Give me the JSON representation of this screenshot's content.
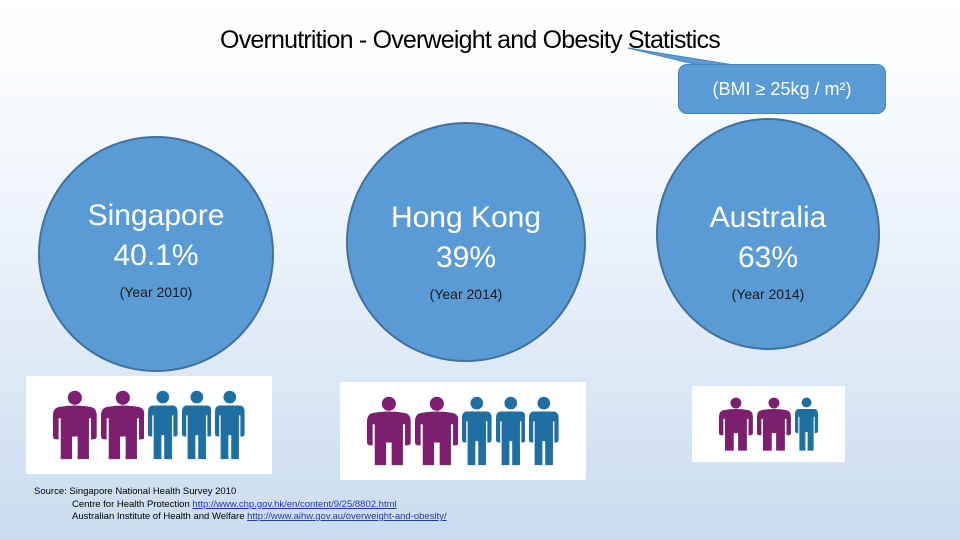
{
  "title": "Overnutrition - Overweight and Obesity Statistics",
  "callout": "(BMI ≥ 25kg / m²)",
  "colors": {
    "circle": "#5b9bd5",
    "overweight": "#7b1f6e",
    "normal": "#1f6fa3"
  },
  "icons": {
    "figure": "person-icon"
  },
  "countries": [
    {
      "name": "Singapore",
      "percent": "40.1%",
      "year": "(Year 2010)",
      "overweight_count": 2,
      "total_count": 5
    },
    {
      "name": "Hong Kong",
      "percent": "39%",
      "year": "(Year 2014)",
      "overweight_count": 2,
      "total_count": 5
    },
    {
      "name": "Australia",
      "percent": "63%",
      "year": "(Year 2014)",
      "overweight_count": 2,
      "total_count": 3
    }
  ],
  "sources": {
    "line1": "Source: Singapore National Health Survey 2010",
    "line2_text": "Centre for Health Protection ",
    "line2_link": "http://www.chp.gov.hk/en/content/9/25/8802.html",
    "line3_text": "Australian Institute of Health and Welfare  ",
    "line3_link": "http://www.aihw.gov.au/overweight-and-obesity/"
  }
}
